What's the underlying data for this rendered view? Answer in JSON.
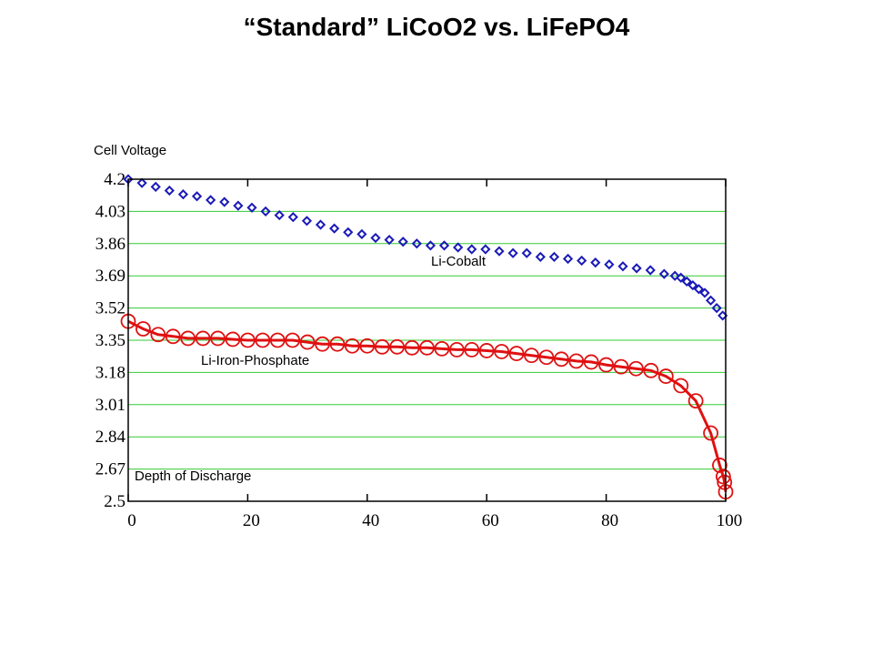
{
  "chart_data": {
    "type": "line",
    "title": "“Standard” LiCoO2 vs. LiFePO4",
    "ylabel": "Cell Voltage",
    "xlabel": "Depth of Discharge",
    "xlim": [
      0,
      100
    ],
    "ylim": [
      2.5,
      4.2
    ],
    "xticks": [
      "0",
      "20",
      "40",
      "60",
      "80",
      "100"
    ],
    "xtick_values": [
      0,
      20,
      40,
      60,
      80,
      100
    ],
    "yticks": [
      "2.5",
      "2.67",
      "2.84",
      "3.01",
      "3.18",
      "3.35",
      "3.52",
      "3.69",
      "3.86",
      "4.03",
      "4.2"
    ],
    "ytick_values": [
      2.5,
      2.67,
      2.84,
      3.01,
      3.18,
      3.35,
      3.52,
      3.69,
      3.86,
      4.03,
      4.2
    ],
    "grid": "horizontal",
    "colors": {
      "cobalt": "#1a1ab8",
      "phosphate": "#e01010",
      "grid": "#33cc33"
    },
    "series": [
      {
        "name": "Li-Cobalt",
        "marker": "diamond",
        "x": [
          0,
          2.3,
          4.6,
          6.9,
          9.2,
          11.5,
          13.8,
          16.1,
          18.4,
          20.7,
          23,
          25.3,
          27.6,
          29.9,
          32.2,
          34.5,
          36.8,
          39.1,
          41.4,
          43.7,
          46,
          48.3,
          50.6,
          52.9,
          55.2,
          57.5,
          59.8,
          62.1,
          64.4,
          66.7,
          69,
          71.3,
          73.6,
          75.9,
          78.2,
          80.5,
          82.8,
          85.1,
          87.4,
          89.7,
          91.5,
          92.5,
          93.5,
          94.5,
          95.5,
          96.5,
          97.5,
          98.5,
          99.5
        ],
        "values": [
          4.2,
          4.18,
          4.16,
          4.14,
          4.12,
          4.11,
          4.09,
          4.08,
          4.06,
          4.05,
          4.03,
          4.01,
          4.0,
          3.98,
          3.96,
          3.94,
          3.92,
          3.91,
          3.89,
          3.88,
          3.87,
          3.86,
          3.85,
          3.85,
          3.84,
          3.83,
          3.83,
          3.82,
          3.81,
          3.81,
          3.79,
          3.79,
          3.78,
          3.77,
          3.76,
          3.75,
          3.74,
          3.73,
          3.72,
          3.7,
          3.69,
          3.68,
          3.66,
          3.64,
          3.62,
          3.6,
          3.56,
          3.52,
          3.48
        ]
      },
      {
        "name": "Li-Iron-Phosphate",
        "marker": "circle",
        "x": [
          0,
          2.5,
          5,
          7.5,
          10,
          12.5,
          15,
          17.5,
          20,
          22.5,
          25,
          27.5,
          30,
          32.5,
          35,
          37.5,
          40,
          42.5,
          45,
          47.5,
          50,
          52.5,
          55,
          57.5,
          60,
          62.5,
          65,
          67.5,
          70,
          72.5,
          75,
          77.5,
          80,
          82.5,
          85,
          87.5,
          90,
          92.5,
          95,
          97.5,
          99,
          99.6,
          99.8,
          100
        ],
        "values": [
          3.45,
          3.41,
          3.38,
          3.37,
          3.36,
          3.36,
          3.36,
          3.355,
          3.35,
          3.35,
          3.35,
          3.35,
          3.34,
          3.33,
          3.33,
          3.32,
          3.32,
          3.315,
          3.315,
          3.31,
          3.31,
          3.305,
          3.3,
          3.3,
          3.295,
          3.29,
          3.28,
          3.27,
          3.26,
          3.25,
          3.24,
          3.235,
          3.22,
          3.21,
          3.2,
          3.19,
          3.16,
          3.11,
          3.03,
          2.86,
          2.69,
          2.63,
          2.6,
          2.55
        ]
      }
    ],
    "annotations": {
      "cobalt_label": "Li-Cobalt",
      "phosphate_label": "Li-Iron-Phosphate",
      "depth_label": "Depth of Discharge"
    }
  }
}
